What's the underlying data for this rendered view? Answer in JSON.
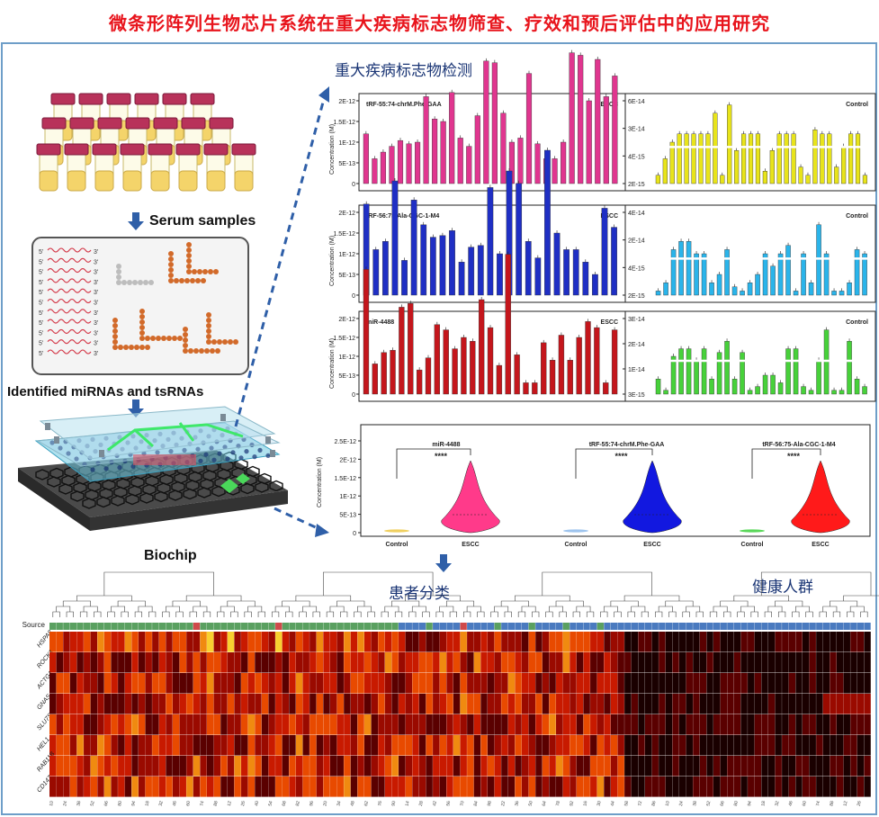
{
  "title": "微条形阵列生物芯片系统在重大疾病标志物筛查、疗效和预后评估中的应用研究",
  "workflow": {
    "serum_label": "Serum samples",
    "identified_label": "Identified miRNAs and tsRNAs",
    "biochip_label": "Biochip",
    "prime5": "5'",
    "prime3": "3'"
  },
  "detection_title": "重大疾病标志物检测",
  "patient_class_label": "患者分类",
  "healthy_label": "健康人群",
  "colors": {
    "title": "#e8141c",
    "border": "#6e9ec8",
    "pink": "#e0368f",
    "yellow": "#e8e41a",
    "blue": "#1f2fc4",
    "cyan": "#2ab4ea",
    "red": "#c4161c",
    "green": "#47d13a",
    "arrow": "#2f5fa8"
  },
  "chart_data": [
    {
      "type": "bar",
      "name": "tRF-55:74-chrM.Phe-GAA",
      "group": "ESCC",
      "ylabel": "Concentration (M)",
      "yticks": [
        "2E-12",
        "1.5E-12",
        "1E-12",
        "5E-13",
        "0"
      ],
      "ylim": [
        0,
        2e-12
      ],
      "values": [
        0.6,
        0.3,
        0.38,
        0.45,
        0.52,
        0.48,
        0.5,
        1.05,
        0.78,
        0.75,
        1.1,
        0.55,
        0.45,
        0.82,
        1.48,
        1.46,
        0.85,
        0.5,
        0.55,
        1.33,
        0.48,
        0.3,
        0.3,
        0.5,
        1.58,
        1.55,
        1.0,
        1.5,
        1.05,
        1.3
      ]
    },
    {
      "type": "bar",
      "name": "",
      "group": "Control",
      "ylabel": "",
      "yticks": [
        "6E-14",
        "3E-14",
        "4E-15",
        "2E-15"
      ],
      "values": [
        0.1,
        0.3,
        0.5,
        0.6,
        0.6,
        0.6,
        0.6,
        0.6,
        0.85,
        0.1,
        0.95,
        0.4,
        0.6,
        0.6,
        0.6,
        0.15,
        0.4,
        0.6,
        0.6,
        0.6,
        0.2,
        0.1,
        0.65,
        0.6,
        0.6,
        0.2,
        0.45,
        0.6,
        0.6,
        0.1
      ]
    },
    {
      "type": "bar",
      "name": "tRF-56:75-Ala-CGC-1-M4",
      "group": "ESCC",
      "ylabel": "Concentration (M)",
      "yticks": [
        "2E-12",
        "1.5E-12",
        "1E-12",
        "5E-13",
        "0"
      ],
      "ylim": [
        0,
        2e-12
      ],
      "values": [
        1.1,
        0.55,
        0.65,
        1.38,
        0.42,
        1.15,
        0.85,
        0.7,
        0.72,
        0.78,
        0.4,
        0.58,
        0.6,
        1.3,
        0.5,
        1.5,
        1.35,
        0.65,
        0.45,
        1.75,
        0.75,
        0.55,
        0.55,
        0.4,
        0.25,
        1.05,
        0.82
      ]
    },
    {
      "type": "bar",
      "name": "",
      "group": "Control",
      "ylabel": "",
      "yticks": [
        "4E-14",
        "2E-14",
        "4E-15",
        "2E-15"
      ],
      "values": [
        0.05,
        0.15,
        0.55,
        0.65,
        0.65,
        0.5,
        0.5,
        0.15,
        0.25,
        0.55,
        0.1,
        0.05,
        0.15,
        0.25,
        0.5,
        0.35,
        0.5,
        0.6,
        0.05,
        0.5,
        0.15,
        0.85,
        0.5,
        0.05,
        0.05,
        0.15,
        0.55,
        0.5
      ]
    },
    {
      "type": "bar",
      "name": "miR-4488",
      "group": "ESCC",
      "ylabel": "Concentration (M)",
      "yticks": [
        "2E-12",
        "1.5E-12",
        "1E-12",
        "5E-13",
        "0"
      ],
      "ylim": [
        0,
        2e-12
      ],
      "values": [
        1.65,
        0.4,
        0.55,
        0.58,
        1.15,
        1.2,
        0.32,
        0.48,
        0.92,
        0.85,
        0.6,
        0.75,
        0.7,
        1.25,
        0.88,
        0.38,
        1.85,
        0.52,
        0.15,
        0.15,
        0.68,
        0.45,
        0.78,
        0.45,
        0.75,
        0.96,
        0.88,
        0.15,
        0.85
      ]
    },
    {
      "type": "bar",
      "name": "",
      "group": "Control",
      "ylabel": "",
      "yticks": [
        "3E-14",
        "2E-14",
        "1E-14",
        "3E-15"
      ],
      "values": [
        0.2,
        0.05,
        0.5,
        0.6,
        0.6,
        0.45,
        0.6,
        0.2,
        0.55,
        0.7,
        0.2,
        0.55,
        0.05,
        0.1,
        0.25,
        0.25,
        0.15,
        0.6,
        0.6,
        0.1,
        0.05,
        0.45,
        0.85,
        0.05,
        0.05,
        0.7,
        0.2,
        0.1
      ]
    },
    {
      "type": "violin",
      "ylabel": "Concentration (M)",
      "yticks": [
        "2.5E-12",
        "2E-12",
        "1.5E-12",
        "1E-12",
        "5E-13",
        "0"
      ],
      "ylim": [
        0,
        2.5e-12
      ],
      "significance": "****",
      "groups": [
        {
          "name": "miR-4488",
          "categories": [
            "Control",
            "ESCC"
          ]
        },
        {
          "name": "tRF-55:74-chrM.Phe-GAA",
          "categories": [
            "Control",
            "ESCC"
          ]
        },
        {
          "name": "tRF-56:75-Ala-CGC-1-M4",
          "categories": [
            "Control",
            "ESCC"
          ]
        }
      ]
    },
    {
      "type": "heatmap",
      "row_header": "Source",
      "rows": [
        "HSPA8",
        "ROCK1",
        "ACTG1",
        "GNAS",
        "SLU7S",
        "HEL1",
        "RAB11B",
        "CD147"
      ]
    }
  ]
}
